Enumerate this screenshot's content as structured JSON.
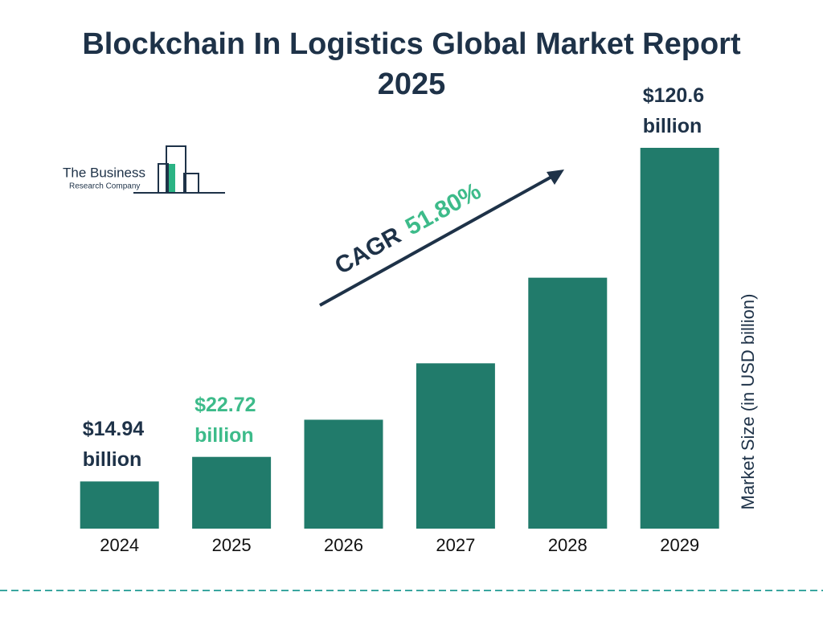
{
  "chart_data": {
    "type": "bar",
    "title": "Blockchain In Logistics Global Market Report 2025",
    "categories": [
      "2024",
      "2025",
      "2026",
      "2027",
      "2028",
      "2029"
    ],
    "values": [
      14.94,
      22.72,
      34.49,
      52.35,
      79.47,
      120.6
    ],
    "value_labels": [
      "$14.94 billion",
      "$22.72 billion",
      null,
      null,
      null,
      "$120.6 billion"
    ],
    "value_label_colors": [
      "#1e3248",
      "#3dbb8a",
      null,
      null,
      null,
      "#1e3248"
    ],
    "color": "#217b6b",
    "y_axis_label": "Market Size (in USD billion)",
    "annotation": {
      "label": "CAGR",
      "value_label": "51.80%"
    },
    "logo": {
      "line1": "The Business",
      "line2": "Research Company"
    }
  }
}
